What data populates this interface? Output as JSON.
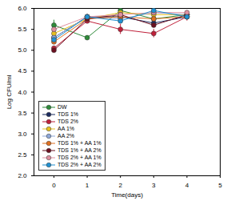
{
  "chart_data": {
    "type": "line",
    "x_label": "Time(days)",
    "y_label": "Log CFU/ml",
    "xlim": [
      -0.6,
      5
    ],
    "xticks": [
      0,
      1,
      2,
      3,
      4,
      5
    ],
    "ylim": [
      2.0,
      6.0
    ],
    "yticks": [
      {
        "value": 2.0,
        "label": "2.0"
      },
      2.5,
      {
        "value": 3.0,
        "label": "3.0"
      },
      3.5,
      {
        "value": 4.0,
        "label": "4.0"
      },
      4.5,
      {
        "value": 5.0,
        "label": "5.0"
      },
      5.5,
      {
        "value": 6.0,
        "label": "6.0"
      }
    ],
    "grid": false,
    "legend": "lower left",
    "marker": "circle",
    "x": [
      0,
      1,
      2,
      3,
      4
    ],
    "series": [
      {
        "name": "DW",
        "color": "#2e8b3a",
        "values": [
          5.6,
          5.3,
          5.95,
          5.75,
          5.85
        ],
        "errors": [
          0.12,
          0.05,
          0.05,
          0.05,
          0.05
        ]
      },
      {
        "name": "TDS 1%",
        "color": "#1a2a5e",
        "values": [
          5.3,
          5.8,
          5.8,
          5.65,
          5.8
        ],
        "errors": [
          0.05,
          0.05,
          0.05,
          0.05,
          0.05
        ]
      },
      {
        "name": "TDS 2%",
        "color": "#c0203a",
        "values": [
          5.05,
          5.7,
          5.5,
          5.4,
          5.8
        ],
        "errors": [
          0.05,
          0.05,
          0.12,
          0.1,
          0.1
        ]
      },
      {
        "name": "AA 1%",
        "color": "#e8c020",
        "values": [
          5.4,
          5.75,
          5.9,
          5.85,
          5.85
        ],
        "errors": [
          0.05,
          0.05,
          0.05,
          0.05,
          0.05
        ]
      },
      {
        "name": "AA 2%",
        "color": "#8fa8d8",
        "values": [
          5.3,
          5.8,
          5.75,
          5.9,
          5.85
        ],
        "errors": [
          0.05,
          0.05,
          0.05,
          0.05,
          0.05
        ]
      },
      {
        "name": "TDS 1% + AA 1%",
        "color": "#e07020",
        "values": [
          5.2,
          5.75,
          5.8,
          5.75,
          5.8
        ],
        "errors": [
          0.05,
          0.05,
          0.05,
          0.05,
          0.05
        ]
      },
      {
        "name": "TDS 1% + AA 2%",
        "color": "#6b1020",
        "values": [
          5.0,
          5.75,
          5.85,
          5.6,
          5.85
        ],
        "errors": [
          0.05,
          0.05,
          0.05,
          0.05,
          0.05
        ]
      },
      {
        "name": "TDS 2% + AA 1%",
        "color": "#e090a0",
        "values": [
          5.5,
          5.8,
          5.85,
          5.9,
          5.9
        ],
        "errors": [
          0.05,
          0.05,
          0.05,
          0.05,
          0.05
        ]
      },
      {
        "name": "TDS 2% + AA 2%",
        "color": "#2090d0",
        "values": [
          5.25,
          5.8,
          5.7,
          5.95,
          5.8
        ],
        "errors": [
          0.05,
          0.05,
          0.05,
          0.05,
          0.05
        ]
      }
    ]
  }
}
